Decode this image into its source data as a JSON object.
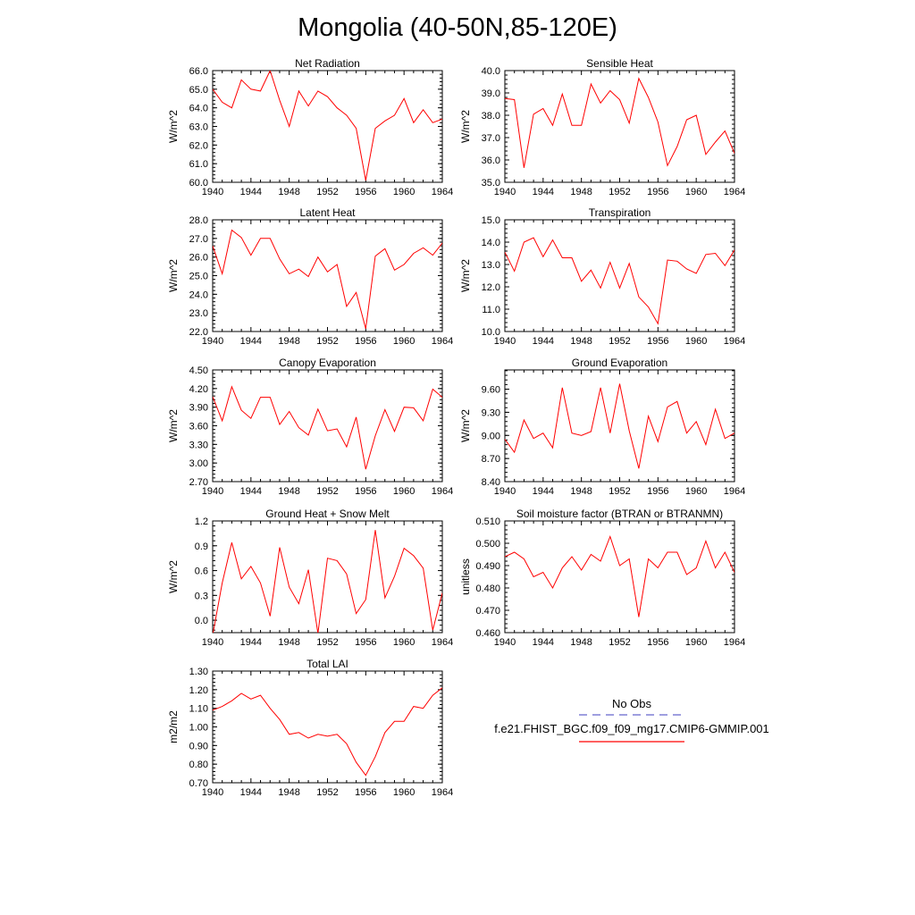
{
  "figure": {
    "title": "Mongolia (40-50N,85-120E)"
  },
  "legend": {
    "obs_label": "No Obs",
    "obs_color": "#6666cc",
    "model_label": "f.e21.FHIST_BGC.f09_f09_mg17.CMIP6-GMMIP.001",
    "model_color": "#ff0000"
  },
  "chart_data": [
    {
      "type": "line",
      "title": "Net Radiation",
      "ylabel": "W/m^2",
      "xlim": [
        1940,
        1964
      ],
      "ylim": [
        60.0,
        66.0
      ],
      "xticks": [
        "1940",
        "1944",
        "1948",
        "1952",
        "1956",
        "1960",
        "1964"
      ],
      "yticks": [
        "60.0",
        "61.0",
        "62.0",
        "63.0",
        "64.0",
        "65.0",
        "66.0"
      ],
      "x": [
        1940,
        1941,
        1942,
        1943,
        1944,
        1945,
        1946,
        1947,
        1948,
        1949,
        1950,
        1951,
        1952,
        1953,
        1954,
        1955,
        1956,
        1957,
        1958,
        1959,
        1960,
        1961,
        1962,
        1963,
        1964
      ],
      "series": [
        {
          "name": "f.e21.FHIST_BGC.f09_f09_mg17.CMIP6-GMMIP.001",
          "values": [
            65.0,
            64.3,
            64.0,
            65.5,
            65.0,
            64.9,
            66.0,
            64.4,
            63.0,
            64.9,
            64.1,
            64.9,
            64.6,
            64.0,
            63.6,
            62.9,
            60.1,
            62.9,
            63.3,
            63.6,
            64.5,
            63.2,
            63.9,
            63.2,
            63.4
          ]
        }
      ]
    },
    {
      "type": "line",
      "title": "Sensible Heat",
      "ylabel": "W/m^2",
      "xlim": [
        1940,
        1964
      ],
      "ylim": [
        35.0,
        40.0
      ],
      "xticks": [
        "1940",
        "1944",
        "1948",
        "1952",
        "1956",
        "1960",
        "1964"
      ],
      "yticks": [
        "35.0",
        "36.0",
        "37.0",
        "38.0",
        "39.0",
        "40.0"
      ],
      "x": [
        1940,
        1941,
        1942,
        1943,
        1944,
        1945,
        1946,
        1947,
        1948,
        1949,
        1950,
        1951,
        1952,
        1953,
        1954,
        1955,
        1956,
        1957,
        1958,
        1959,
        1960,
        1961,
        1962,
        1963,
        1964
      ],
      "series": [
        {
          "name": "f.e21.FHIST_BGC.f09_f09_mg17.CMIP6-GMMIP.001",
          "values": [
            38.75,
            38.7,
            35.65,
            38.05,
            38.3,
            37.55,
            38.95,
            37.55,
            37.55,
            39.4,
            38.55,
            39.1,
            38.7,
            37.65,
            39.65,
            38.8,
            37.7,
            35.75,
            36.6,
            37.8,
            38.0,
            36.25,
            36.8,
            37.3,
            36.3
          ]
        }
      ]
    },
    {
      "type": "line",
      "title": "Latent Heat",
      "ylabel": "W/m^2",
      "xlim": [
        1940,
        1964
      ],
      "ylim": [
        22.0,
        28.0
      ],
      "xticks": [
        "1940",
        "1944",
        "1948",
        "1952",
        "1956",
        "1960",
        "1964"
      ],
      "yticks": [
        "22.0",
        "23.0",
        "24.0",
        "25.0",
        "26.0",
        "27.0",
        "28.0"
      ],
      "x": [
        1940,
        1941,
        1942,
        1943,
        1944,
        1945,
        1946,
        1947,
        1948,
        1949,
        1950,
        1951,
        1952,
        1953,
        1954,
        1955,
        1956,
        1957,
        1958,
        1959,
        1960,
        1961,
        1962,
        1963,
        1964
      ],
      "series": [
        {
          "name": "f.e21.FHIST_BGC.f09_f09_mg17.CMIP6-GMMIP.001",
          "values": [
            26.6,
            25.1,
            27.45,
            27.05,
            26.1,
            27.0,
            27.0,
            25.9,
            25.1,
            25.35,
            24.95,
            26.0,
            25.2,
            25.6,
            23.35,
            24.1,
            22.15,
            26.05,
            26.45,
            25.3,
            25.6,
            26.2,
            26.5,
            26.1,
            26.75
          ]
        }
      ]
    },
    {
      "type": "line",
      "title": "Transpiration",
      "ylabel": "W/m^2",
      "xlim": [
        1940,
        1964
      ],
      "ylim": [
        10.0,
        15.0
      ],
      "xticks": [
        "1940",
        "1944",
        "1948",
        "1952",
        "1956",
        "1960",
        "1964"
      ],
      "yticks": [
        "10.0",
        "11.0",
        "12.0",
        "13.0",
        "14.0",
        "15.0"
      ],
      "x": [
        1940,
        1941,
        1942,
        1943,
        1944,
        1945,
        1946,
        1947,
        1948,
        1949,
        1950,
        1951,
        1952,
        1953,
        1954,
        1955,
        1956,
        1957,
        1958,
        1959,
        1960,
        1961,
        1962,
        1963,
        1964
      ],
      "series": [
        {
          "name": "f.e21.FHIST_BGC.f09_f09_mg17.CMIP6-GMMIP.001",
          "values": [
            13.55,
            12.7,
            14.0,
            14.2,
            13.35,
            14.1,
            13.3,
            13.3,
            12.25,
            12.75,
            11.95,
            13.1,
            11.95,
            13.05,
            11.55,
            11.1,
            10.35,
            13.2,
            13.15,
            12.8,
            12.6,
            13.45,
            13.5,
            12.95,
            13.65
          ]
        }
      ]
    },
    {
      "type": "line",
      "title": "Canopy Evaporation",
      "ylabel": "W/m^2",
      "xlim": [
        1940,
        1964
      ],
      "ylim": [
        2.7,
        4.5
      ],
      "xticks": [
        "1940",
        "1944",
        "1948",
        "1952",
        "1956",
        "1960",
        "1964"
      ],
      "yticks": [
        "2.70",
        "3.00",
        "3.30",
        "3.60",
        "3.90",
        "4.20",
        "4.50"
      ],
      "x": [
        1940,
        1941,
        1942,
        1943,
        1944,
        1945,
        1946,
        1947,
        1948,
        1949,
        1950,
        1951,
        1952,
        1953,
        1954,
        1955,
        1956,
        1957,
        1958,
        1959,
        1960,
        1961,
        1962,
        1963,
        1964
      ],
      "series": [
        {
          "name": "f.e21.FHIST_BGC.f09_f09_mg17.CMIP6-GMMIP.001",
          "values": [
            4.07,
            3.68,
            4.23,
            3.85,
            3.72,
            4.06,
            4.06,
            3.62,
            3.83,
            3.57,
            3.45,
            3.87,
            3.52,
            3.55,
            3.26,
            3.74,
            2.9,
            3.44,
            3.86,
            3.51,
            3.9,
            3.89,
            3.68,
            4.19,
            4.06
          ]
        }
      ]
    },
    {
      "type": "line",
      "title": "Ground Evaporation",
      "ylabel": "W/m^2",
      "xlim": [
        1940,
        1964
      ],
      "ylim": [
        8.4,
        9.85
      ],
      "xticks": [
        "1940",
        "1944",
        "1948",
        "1952",
        "1956",
        "1960",
        "1964"
      ],
      "yticks": [
        "8.40",
        "8.70",
        "9.00",
        "9.30",
        "9.60"
      ],
      "x": [
        1940,
        1941,
        1942,
        1943,
        1944,
        1945,
        1946,
        1947,
        1948,
        1949,
        1950,
        1951,
        1952,
        1953,
        1954,
        1955,
        1956,
        1957,
        1958,
        1959,
        1960,
        1961,
        1962,
        1963,
        1964
      ],
      "series": [
        {
          "name": "f.e21.FHIST_BGC.f09_f09_mg17.CMIP6-GMMIP.001",
          "values": [
            8.95,
            8.78,
            9.2,
            8.96,
            9.03,
            8.84,
            9.62,
            9.03,
            9.0,
            9.05,
            9.62,
            9.03,
            9.67,
            9.06,
            8.57,
            9.25,
            8.92,
            9.37,
            9.44,
            9.03,
            9.18,
            8.88,
            9.34,
            8.96,
            9.03
          ]
        }
      ]
    },
    {
      "type": "line",
      "title": "Ground Heat + Snow Melt",
      "ylabel": "W/m^2",
      "xlim": [
        1940,
        1964
      ],
      "ylim": [
        -0.15,
        1.2
      ],
      "xticks": [
        "1940",
        "1944",
        "1948",
        "1952",
        "1956",
        "1960",
        "1964"
      ],
      "yticks": [
        "0.0",
        "0.3",
        "0.6",
        "0.9",
        "1.2"
      ],
      "x": [
        1940,
        1941,
        1942,
        1943,
        1944,
        1945,
        1946,
        1947,
        1948,
        1949,
        1950,
        1951,
        1952,
        1953,
        1954,
        1955,
        1956,
        1957,
        1958,
        1959,
        1960,
        1961,
        1962,
        1963,
        1964
      ],
      "series": [
        {
          "name": "f.e21.FHIST_BGC.f09_f09_mg17.CMIP6-GMMIP.001",
          "values": [
            -0.18,
            0.45,
            0.94,
            0.5,
            0.65,
            0.45,
            0.05,
            0.88,
            0.4,
            0.2,
            0.61,
            -0.16,
            0.75,
            0.72,
            0.56,
            0.08,
            0.25,
            1.09,
            0.27,
            0.53,
            0.87,
            0.78,
            0.63,
            -0.12,
            0.33
          ]
        }
      ]
    },
    {
      "type": "line",
      "title": "Soil moisture factor (BTRAN or BTRANMN)",
      "ylabel": "unitless",
      "xlim": [
        1940,
        1964
      ],
      "ylim": [
        0.46,
        0.51
      ],
      "xticks": [
        "1940",
        "1944",
        "1948",
        "1952",
        "1956",
        "1960",
        "1964"
      ],
      "yticks": [
        "0.460",
        "0.470",
        "0.480",
        "0.490",
        "0.500",
        "0.510"
      ],
      "x": [
        1940,
        1941,
        1942,
        1943,
        1944,
        1945,
        1946,
        1947,
        1948,
        1949,
        1950,
        1951,
        1952,
        1953,
        1954,
        1955,
        1956,
        1957,
        1958,
        1959,
        1960,
        1961,
        1962,
        1963,
        1964
      ],
      "series": [
        {
          "name": "f.e21.FHIST_BGC.f09_f09_mg17.CMIP6-GMMIP.001",
          "values": [
            0.494,
            0.496,
            0.493,
            0.485,
            0.487,
            0.48,
            0.489,
            0.494,
            0.488,
            0.495,
            0.492,
            0.503,
            0.49,
            0.493,
            0.467,
            0.493,
            0.489,
            0.496,
            0.496,
            0.486,
            0.489,
            0.501,
            0.489,
            0.496,
            0.487
          ]
        }
      ]
    },
    {
      "type": "line",
      "title": "Total LAI",
      "ylabel": "m2/m2",
      "xlim": [
        1940,
        1964
      ],
      "ylim": [
        0.7,
        1.3
      ],
      "xticks": [
        "1940",
        "1944",
        "1948",
        "1952",
        "1956",
        "1960",
        "1964"
      ],
      "yticks": [
        "0.70",
        "0.80",
        "0.90",
        "1.00",
        "1.10",
        "1.20",
        "1.30"
      ],
      "x": [
        1940,
        1941,
        1942,
        1943,
        1944,
        1945,
        1946,
        1947,
        1948,
        1949,
        1950,
        1951,
        1952,
        1953,
        1954,
        1955,
        1956,
        1957,
        1958,
        1959,
        1960,
        1961,
        1962,
        1963,
        1964
      ],
      "series": [
        {
          "name": "f.e21.FHIST_BGC.f09_f09_mg17.CMIP6-GMMIP.001",
          "values": [
            1.09,
            1.11,
            1.14,
            1.18,
            1.15,
            1.17,
            1.1,
            1.04,
            0.96,
            0.97,
            0.94,
            0.96,
            0.95,
            0.96,
            0.91,
            0.81,
            0.74,
            0.84,
            0.97,
            1.03,
            1.03,
            1.11,
            1.1,
            1.17,
            1.21
          ]
        }
      ]
    }
  ]
}
